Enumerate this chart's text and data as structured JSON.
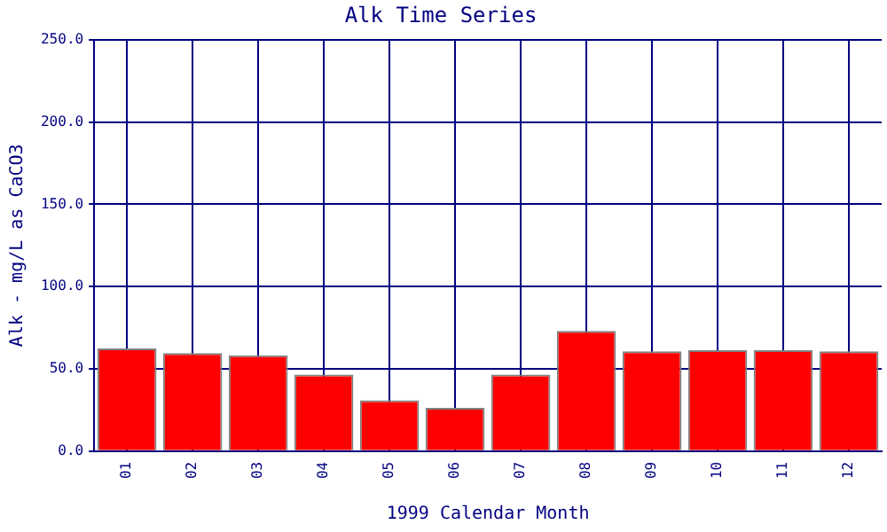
{
  "chart_data": {
    "type": "bar",
    "title": "Alk Time Series",
    "xlabel": "1999 Calendar Month",
    "ylabel": "Alk - mg/L as CaCO3",
    "categories": [
      "01",
      "02",
      "03",
      "04",
      "05",
      "06",
      "07",
      "08",
      "09",
      "10",
      "11",
      "12"
    ],
    "values": [
      62.4,
      59.6,
      58.2,
      46.5,
      30.9,
      26.2,
      46.5,
      73,
      60.6,
      61.3,
      61.3,
      60.6
    ],
    "color": "#ff0000",
    "ylim": [
      0,
      250
    ],
    "yticks": [
      {
        "value": 0,
        "label": "0.0"
      },
      {
        "value": 50,
        "label": "50.0"
      },
      {
        "value": 100,
        "label": "100.0"
      },
      {
        "value": 150,
        "label": "150.0"
      },
      {
        "value": 200,
        "label": "200.0"
      },
      {
        "value": 250,
        "label": "250.0"
      }
    ],
    "grid": true
  }
}
